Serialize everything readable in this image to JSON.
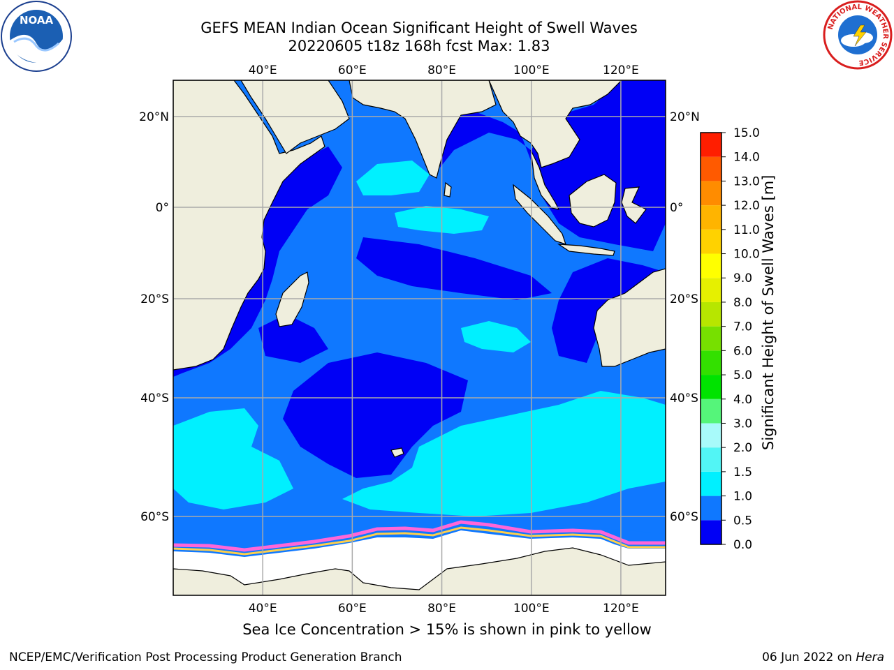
{
  "title": {
    "line1": "GEFS MEAN Indian Ocean Significant Height of Swell Waves",
    "line2": "20220605 t18z 168h fcst   Max: 1.83"
  },
  "axes": {
    "lon_ticks": [
      "40°E",
      "60°E",
      "80°E",
      "100°E",
      "120°E"
    ],
    "lat_ticks": [
      "20°N",
      "0°",
      "20°S",
      "40°S",
      "60°S"
    ],
    "lon_range": [
      20,
      130
    ],
    "lat_range": [
      -72,
      28
    ]
  },
  "colorbar": {
    "title": "Significant Height of Swell Waves [m]",
    "levels": [
      "0.0",
      "0.5",
      "1.0",
      "1.5",
      "2.0",
      "3.0",
      "4.0",
      "5.0",
      "6.0",
      "7.0",
      "8.0",
      "9.0",
      "10.0",
      "11.0",
      "12.0",
      "13.0",
      "14.0",
      "15.0"
    ],
    "colors": [
      "#0000f5",
      "#0f78ff",
      "#00f0ff",
      "#52f5f5",
      "#a8fafa",
      "#55f57a",
      "#00e300",
      "#33e000",
      "#77e000",
      "#b7e600",
      "#e6f000",
      "#ffff00",
      "#ffd200",
      "#ffb400",
      "#ff8c00",
      "#ff5a00",
      "#ff1e00"
    ]
  },
  "legend": {
    "sea_ice_note": "Sea Ice Concentration > 15% is shown in pink to yellow"
  },
  "logos": {
    "noaa": "NOAA",
    "nws_ring": "NATIONAL WEATHER SERVICE"
  },
  "credits": {
    "left": "NCEP/EMC/Verification Post Processing Product Generation Branch",
    "date": "06 Jun 2022",
    "on": "on",
    "system": "Hera"
  },
  "map_colors": {
    "land": "#efeedd",
    "ice": "#ffffff",
    "grid": "#aaaaaa"
  },
  "icons": [
    "noaa-logo-icon",
    "nws-logo-icon"
  ]
}
